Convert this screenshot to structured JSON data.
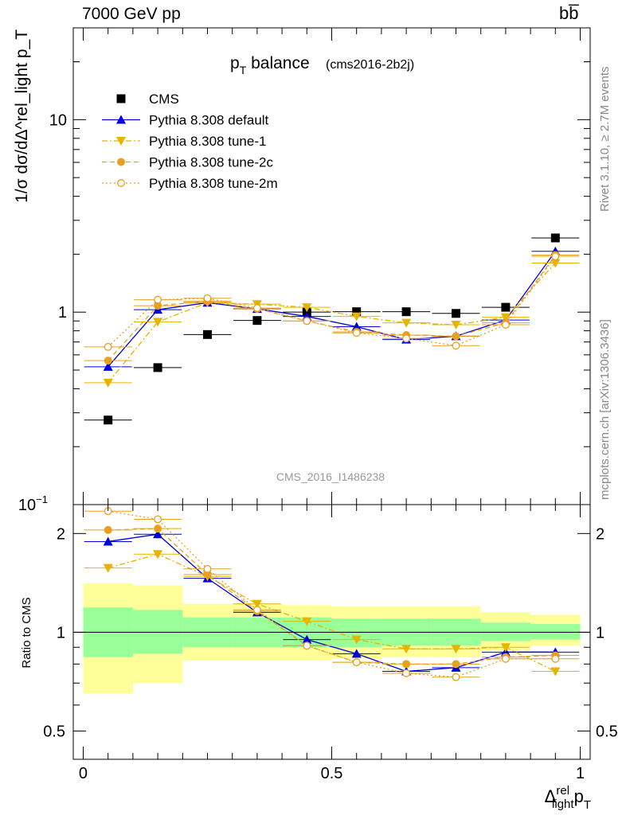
{
  "header": {
    "left": "7000 GeV pp",
    "right": "bb̅"
  },
  "side_text": {
    "rivet": "Rivet 3.1.10, ≥ 2.7M events",
    "mcplots": "mcplots.cern.ch [arXiv:1306.3436]"
  },
  "chart_data": [
    {
      "type": "scatter",
      "title": "p_T balance",
      "title_main": "p",
      "title_sub": "T",
      "title_rest": " balance",
      "subtitle": "(cms2016-2b2j)",
      "watermark": "CMS_2016_I1486238",
      "ylabel": "1/σ dσ/dΔ^rel_light p_T",
      "yscale": "log",
      "ylim": [
        0.1,
        30
      ],
      "yticks": [
        {
          "v": 0.1,
          "label": "10",
          "exp": "−1"
        },
        {
          "v": 1,
          "label": "1",
          "exp": ""
        },
        {
          "v": 10,
          "label": "10",
          "exp": ""
        }
      ],
      "xlim": [
        -0.02,
        1.02
      ],
      "x": [
        0.05,
        0.15,
        0.25,
        0.35,
        0.45,
        0.55,
        0.65,
        0.75,
        0.85,
        0.95
      ],
      "legend_position": "top-left",
      "series": [
        {
          "name": "CMS",
          "color": "#000000",
          "marker": "square",
          "line": "none",
          "values": [
            0.275,
            0.515,
            0.765,
            0.905,
            1.0,
            1.005,
            1.005,
            0.985,
            1.06,
            2.43
          ]
        },
        {
          "name": "Pythia 8.308 default",
          "color": "#0000dd",
          "marker": "triangle-up",
          "line": "solid",
          "values": [
            0.52,
            1.03,
            1.12,
            1.04,
            0.95,
            0.84,
            0.72,
            0.75,
            0.91,
            2.07
          ]
        },
        {
          "name": "Pythia 8.308 tune-1",
          "color": "#e6b400",
          "marker": "triangle-down",
          "line": "dashdot",
          "values": [
            0.43,
            0.89,
            1.12,
            1.1,
            1.06,
            0.95,
            0.88,
            0.86,
            0.94,
            1.8
          ]
        },
        {
          "name": "Pythia 8.308 tune-2c",
          "color": "#e8a020",
          "marker": "circle",
          "line": "dashed",
          "values": [
            0.56,
            1.08,
            1.14,
            1.04,
            0.9,
            0.79,
            0.76,
            0.75,
            0.88,
            1.98
          ]
        },
        {
          "name": "Pythia 8.308 tune-2m",
          "color": "#e8a020",
          "marker": "circle-open",
          "line": "dotted",
          "values": [
            0.66,
            1.16,
            1.18,
            1.05,
            0.9,
            0.78,
            0.73,
            0.67,
            0.86,
            1.95
          ]
        }
      ]
    },
    {
      "type": "line",
      "ylabel": "Ratio to CMS",
      "xlabel": "Δ^rel_light p_T",
      "xlabel_main": "Δ",
      "xlabel_sup": "rel",
      "xlabel_sub": "light",
      "xlabel_tail": "p",
      "xlabel_tail_sub": "T",
      "yscale": "log",
      "ylim": [
        0.41,
        2.45
      ],
      "yticks": [
        0.5,
        1,
        2
      ],
      "xlim": [
        -0.02,
        1.02
      ],
      "xticks": [
        0,
        0.5,
        1
      ],
      "xticklabels": [
        "0",
        "0.5",
        "1"
      ],
      "x": [
        0.05,
        0.15,
        0.25,
        0.35,
        0.45,
        0.55,
        0.65,
        0.75,
        0.85,
        0.95
      ],
      "bin_edges": [
        0,
        0.1,
        0.2,
        0.3,
        0.4,
        0.5,
        0.6,
        0.7,
        0.8,
        0.9,
        1.0
      ],
      "band_outer": {
        "color": "#ffff99",
        "low": [
          0.65,
          0.7,
          0.82,
          0.82,
          0.82,
          0.83,
          0.84,
          0.84,
          0.88,
          0.91
        ],
        "high": [
          1.41,
          1.39,
          1.22,
          1.22,
          1.21,
          1.2,
          1.2,
          1.2,
          1.15,
          1.13
        ]
      },
      "band_inner": {
        "color": "#99ff99",
        "low": [
          0.84,
          0.86,
          0.9,
          0.9,
          0.9,
          0.9,
          0.91,
          0.91,
          0.94,
          0.95
        ],
        "high": [
          1.19,
          1.17,
          1.11,
          1.11,
          1.11,
          1.1,
          1.1,
          1.1,
          1.07,
          1.06
        ]
      },
      "series": [
        {
          "name": "Pythia 8.308 default",
          "color": "#0000dd",
          "marker": "triangle-up",
          "line": "solid",
          "values": [
            1.89,
            1.99,
            1.46,
            1.15,
            0.95,
            0.86,
            0.76,
            0.78,
            0.87,
            0.87
          ]
        },
        {
          "name": "Pythia 8.308 tune-1",
          "color": "#e6b400",
          "marker": "triangle-down",
          "line": "dashdot",
          "values": [
            1.57,
            1.73,
            1.48,
            1.22,
            1.08,
            0.95,
            0.89,
            0.89,
            0.9,
            0.76
          ]
        },
        {
          "name": "Pythia 8.308 tune-2c",
          "color": "#e8a020",
          "marker": "circle",
          "line": "dashed",
          "values": [
            2.05,
            2.07,
            1.5,
            1.16,
            0.91,
            0.81,
            0.8,
            0.8,
            0.84,
            0.85
          ]
        },
        {
          "name": "Pythia 8.308 tune-2m",
          "color": "#e8a020",
          "marker": "circle-open",
          "line": "dotted",
          "values": [
            2.34,
            2.21,
            1.56,
            1.17,
            0.91,
            0.81,
            0.75,
            0.73,
            0.83,
            0.83
          ]
        }
      ]
    }
  ]
}
